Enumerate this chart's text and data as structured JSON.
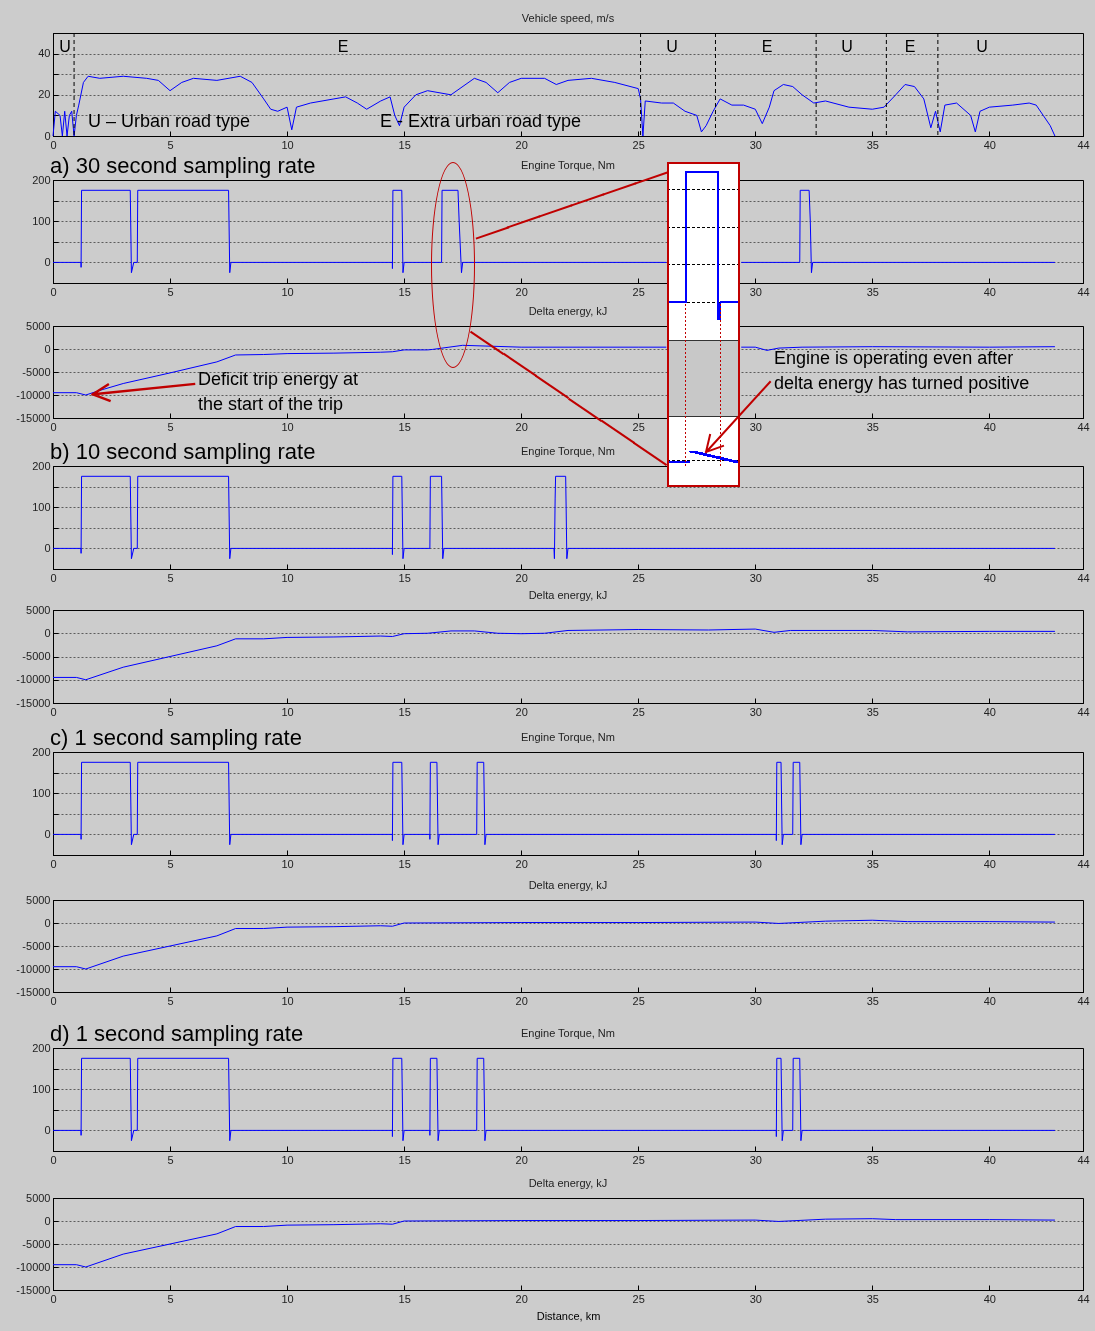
{
  "chart_data": [
    {
      "type": "line",
      "title": "Vehicle speed, m/s",
      "xlim": [
        0,
        44
      ],
      "xticks": [
        0,
        5,
        10,
        15,
        20,
        25,
        30,
        35,
        40,
        44
      ],
      "ylim": [
        0,
        50
      ],
      "yticks": [
        0,
        {
          "value": 10,
          "label": null
        },
        20,
        {
          "value": 30,
          "label": null
        },
        40,
        {
          "value": 50,
          "label": null
        }
      ],
      "grid": "y",
      "series": [
        {
          "color": "#0000ff",
          "x": [
            0,
            0.1,
            0.3,
            0.4,
            0.5,
            0.6,
            0.7,
            0.8,
            0.9,
            1.0,
            1.1,
            1.3,
            1.5,
            2,
            3,
            4,
            4.5,
            5,
            5.5,
            6,
            7,
            8,
            8.5,
            9,
            9.3,
            9.6,
            10,
            10.2,
            10.4,
            11,
            12,
            12.5,
            13,
            13.4,
            14,
            14.4,
            14.6,
            14.8,
            15,
            15.5,
            16,
            17,
            18,
            18.5,
            19,
            19.5,
            20,
            21,
            21.5,
            22,
            23,
            24,
            25,
            25.1,
            25.2,
            25.3,
            26,
            26.5,
            27,
            27.5,
            27.7,
            27.9,
            28.2,
            28.5,
            29,
            29.5,
            30,
            30.3,
            30.6,
            30.8,
            31.2,
            31.6,
            32,
            32.5,
            33,
            34,
            35,
            35.5,
            36,
            36.4,
            36.8,
            37.2,
            37.5,
            37.7,
            37.9,
            38.1,
            38.6,
            39.2,
            39.4,
            39.6,
            40,
            41,
            41.7,
            42,
            42.3,
            42.6,
            42.8
          ],
          "values": [
            0,
            12,
            10,
            0,
            12,
            0,
            10,
            12,
            0,
            10,
            15,
            26,
            29,
            28,
            29,
            28,
            27,
            22,
            26,
            28,
            27,
            29,
            26,
            18,
            13,
            12,
            14,
            3,
            14,
            16,
            18,
            19,
            16,
            13,
            17,
            19,
            10,
            5,
            14,
            20,
            22,
            20,
            28,
            26,
            21,
            26,
            28,
            28,
            25,
            27,
            28,
            26,
            23,
            18,
            0,
            17,
            16,
            16,
            12,
            10,
            2,
            5,
            12,
            18,
            15,
            15,
            13,
            6,
            14,
            22,
            25,
            24,
            20,
            16,
            17,
            14,
            13,
            14,
            20,
            25,
            24,
            18,
            4,
            12,
            2,
            15,
            16,
            10,
            2,
            12,
            14,
            15,
            16,
            15,
            10,
            5,
            0
          ]
        }
      ],
      "ref_lines": [
        {
          "axis": "x",
          "value": 0.9,
          "color": "#000000",
          "line_style": "dashed"
        },
        {
          "axis": "x",
          "value": 25.1,
          "color": "#000000",
          "line_style": "dashed"
        },
        {
          "axis": "x",
          "value": 28.3,
          "color": "#000000",
          "line_style": "dashed"
        },
        {
          "axis": "x",
          "value": 32.6,
          "color": "#000000",
          "line_style": "dashed"
        },
        {
          "axis": "x",
          "value": 35.6,
          "color": "#000000",
          "line_style": "dashed"
        },
        {
          "axis": "x",
          "value": 37.8,
          "color": "#000000",
          "line_style": "dashed"
        }
      ],
      "annotations": [
        "U",
        "E",
        "U",
        "E",
        "U",
        "E",
        "U",
        "U – Urban road type",
        "E - Extra urban road type"
      ]
    },
    {
      "type": "line",
      "title": "Engine Torque, Nm",
      "xlim": [
        0,
        44
      ],
      "xticks": [
        0,
        5,
        10,
        15,
        20,
        25,
        30,
        35,
        40,
        44
      ],
      "ylim": [
        -50,
        200
      ],
      "yticks": [
        {
          "value": -50,
          "label": null
        },
        0,
        {
          "value": 50,
          "label": null
        },
        100,
        {
          "value": 150,
          "label": null
        },
        200
      ],
      "grid": "y",
      "series": [
        {
          "color": "#0000ff",
          "x": [
            0,
            1.2,
            1.2,
            1.22,
            3.3,
            3.35,
            3.45,
            3.6,
            3.62,
            7.5,
            7.55,
            7.6,
            14.5,
            14.5,
            14.52,
            14.9,
            14.95,
            15.0,
            16.6,
            16.62,
            17.3,
            17.35,
            17.45,
            17.5,
            26.2,
            27.5,
            29.4,
            31.9,
            31.92,
            32.3,
            32.35,
            32.4,
            32.45,
            42.8
          ],
          "values": [
            0,
            0,
            -12,
            175,
            175,
            -25,
            0,
            0,
            175,
            175,
            -25,
            0,
            0,
            -15,
            175,
            175,
            -25,
            0,
            0,
            175,
            175,
            100,
            -25,
            0,
            0,
            null,
            0,
            0,
            175,
            175,
            100,
            -25,
            0,
            0
          ]
        }
      ],
      "annotations": [
        "a) 30 second sampling rate"
      ]
    },
    {
      "type": "line",
      "title": "Delta energy, kJ",
      "xlim": [
        0,
        44
      ],
      "xticks": [
        0,
        5,
        10,
        15,
        20,
        25,
        30,
        35,
        40,
        44
      ],
      "ylim": [
        -15000,
        5000
      ],
      "yticks": [
        -15000,
        -10000,
        -5000,
        0,
        5000
      ],
      "grid": "y",
      "series": [
        {
          "color": "#0000ff",
          "x": [
            0,
            1,
            1.4,
            2,
            3,
            5,
            7,
            7.8,
            9,
            10,
            12,
            14,
            14.5,
            15,
            16,
            16.2,
            17.5,
            20,
            25,
            26.2,
            27.5,
            29.4,
            30,
            30.5,
            31,
            32,
            35,
            40,
            42.8
          ],
          "values": [
            -9500,
            -9500,
            -10000,
            -9000,
            -7500,
            -5200,
            -2800,
            -1300,
            -1200,
            -1000,
            -900,
            -700,
            -600,
            -200,
            -200,
            -100,
            800,
            400,
            400,
            400,
            null,
            400,
            400,
            -300,
            200,
            400,
            500,
            400,
            500
          ]
        }
      ],
      "annotations": [
        {
          "text": "Deficit trip energy at\nthe start of the trip",
          "x": 1.4,
          "y": -10000
        },
        "Engine is operating even after\ndelta energy has turned positive"
      ]
    },
    {
      "type": "line",
      "title": "Engine Torque, Nm",
      "xlim": [
        0,
        44
      ],
      "xticks": [
        0,
        5,
        10,
        15,
        20,
        25,
        30,
        35,
        40,
        44
      ],
      "ylim": [
        -50,
        200
      ],
      "yticks": [
        {
          "value": -50,
          "label": null
        },
        0,
        {
          "value": 50,
          "label": null
        },
        100,
        {
          "value": 150,
          "label": null
        },
        200
      ],
      "grid": "y",
      "series": [
        {
          "color": "#0000ff",
          "x": [
            0,
            1.2,
            1.2,
            1.22,
            3.3,
            3.35,
            3.45,
            3.6,
            3.62,
            7.5,
            7.55,
            7.6,
            14.5,
            14.5,
            14.52,
            14.9,
            14.95,
            15.0,
            16.1,
            16.12,
            16.6,
            16.65,
            16.7,
            21.4,
            21.42,
            21.45,
            21.47,
            21.9,
            21.92,
            21.95,
            22.0,
            42.8
          ],
          "values": [
            0,
            0,
            -12,
            175,
            175,
            -25,
            0,
            0,
            175,
            175,
            -25,
            0,
            0,
            -15,
            175,
            175,
            -25,
            0,
            0,
            175,
            175,
            -25,
            0,
            0,
            -25,
            120,
            175,
            175,
            100,
            -25,
            0,
            0
          ]
        }
      ],
      "annotations": [
        "b) 10 second sampling rate"
      ]
    },
    {
      "type": "line",
      "title": "Delta energy, kJ",
      "xlim": [
        0,
        44
      ],
      "xticks": [
        0,
        5,
        10,
        15,
        20,
        25,
        30,
        35,
        40,
        44
      ],
      "ylim": [
        -15000,
        5000
      ],
      "yticks": [
        -15000,
        -10000,
        -5000,
        0,
        5000
      ],
      "grid": "y",
      "series": [
        {
          "color": "#0000ff",
          "x": [
            0,
            1,
            1.4,
            3,
            5,
            7,
            7.8,
            9,
            10,
            12,
            14,
            14.5,
            15,
            16,
            17,
            18,
            19,
            20,
            21,
            22,
            25,
            28,
            30,
            30.8,
            31.5,
            35,
            36.5,
            40,
            42.8
          ],
          "values": [
            -9500,
            -9500,
            -10000,
            -7300,
            -5000,
            -2700,
            -1200,
            -1200,
            -900,
            -800,
            -600,
            -700,
            -100,
            0,
            500,
            500,
            0,
            -100,
            0,
            600,
            800,
            700,
            900,
            200,
            600,
            600,
            300,
            400,
            400
          ]
        }
      ]
    },
    {
      "type": "line",
      "title": "Engine Torque, Nm",
      "xlim": [
        0,
        44
      ],
      "xticks": [
        0,
        5,
        10,
        15,
        20,
        25,
        30,
        35,
        40,
        44
      ],
      "ylim": [
        -50,
        200
      ],
      "yticks": [
        {
          "value": -50,
          "label": null
        },
        0,
        {
          "value": 50,
          "label": null
        },
        100,
        {
          "value": 150,
          "label": null
        },
        200
      ],
      "grid": "y",
      "series": [
        {
          "color": "#0000ff",
          "x": [
            0,
            1.2,
            1.2,
            1.22,
            3.3,
            3.35,
            3.45,
            3.6,
            3.62,
            7.5,
            7.55,
            7.6,
            14.5,
            14.5,
            14.52,
            14.9,
            14.95,
            15.0,
            16.1,
            16.1,
            16.12,
            16.4,
            16.45,
            16.5,
            18.1,
            18.12,
            18.4,
            18.45,
            18.5,
            30.9,
            30.9,
            30.92,
            31.1,
            31.15,
            31.2,
            31.6,
            31.62,
            31.9,
            31.95,
            32.0,
            42.8
          ],
          "values": [
            0,
            0,
            -12,
            175,
            175,
            -25,
            0,
            0,
            175,
            175,
            -25,
            0,
            0,
            -15,
            175,
            175,
            -25,
            0,
            0,
            -12,
            175,
            175,
            -25,
            0,
            0,
            175,
            175,
            -25,
            0,
            0,
            -15,
            175,
            175,
            -25,
            0,
            0,
            175,
            175,
            -25,
            0,
            0
          ]
        }
      ],
      "annotations": [
        "c) 1 second sampling rate"
      ]
    },
    {
      "type": "line",
      "title": "Delta energy, kJ",
      "xlim": [
        0,
        44
      ],
      "xticks": [
        0,
        5,
        10,
        15,
        20,
        25,
        30,
        35,
        40,
        44
      ],
      "ylim": [
        -15000,
        5000
      ],
      "yticks": [
        -15000,
        -10000,
        -5000,
        0,
        5000
      ],
      "grid": "y",
      "series": [
        {
          "color": "#0000ff",
          "x": [
            0,
            1,
            1.4,
            3,
            5,
            7,
            7.8,
            9,
            10,
            12,
            14,
            14.5,
            15,
            20,
            25,
            30,
            31,
            33,
            35,
            36.5,
            40,
            42.8
          ],
          "values": [
            -9500,
            -9500,
            -10000,
            -7200,
            -5000,
            -2800,
            -1200,
            -1200,
            -900,
            -800,
            -600,
            -700,
            0,
            100,
            100,
            200,
            -100,
            400,
            600,
            300,
            300,
            200
          ]
        }
      ]
    },
    {
      "type": "line",
      "title": "Engine Torque, Nm",
      "xlim": [
        0,
        44
      ],
      "xticks": [
        0,
        5,
        10,
        15,
        20,
        25,
        30,
        35,
        40,
        44
      ],
      "ylim": [
        -50,
        200
      ],
      "yticks": [
        {
          "value": -50,
          "label": null
        },
        0,
        {
          "value": 50,
          "label": null
        },
        100,
        {
          "value": 150,
          "label": null
        },
        200
      ],
      "grid": "y",
      "series": [
        {
          "color": "#0000ff",
          "x": [
            0,
            1.2,
            1.2,
            1.22,
            3.3,
            3.35,
            3.45,
            3.6,
            3.62,
            7.5,
            7.55,
            7.6,
            14.5,
            14.5,
            14.52,
            14.9,
            14.95,
            15.0,
            16.1,
            16.1,
            16.12,
            16.4,
            16.45,
            16.5,
            18.1,
            18.12,
            18.4,
            18.45,
            18.5,
            30.9,
            30.9,
            30.92,
            31.1,
            31.15,
            31.2,
            31.6,
            31.62,
            31.9,
            31.95,
            32.0,
            42.8
          ],
          "values": [
            0,
            0,
            -12,
            175,
            175,
            -25,
            0,
            0,
            175,
            175,
            -25,
            0,
            0,
            -15,
            175,
            175,
            -25,
            0,
            0,
            -12,
            175,
            175,
            -25,
            0,
            0,
            175,
            175,
            -25,
            0,
            0,
            -15,
            175,
            175,
            -25,
            0,
            0,
            175,
            175,
            -25,
            0,
            0
          ]
        }
      ],
      "annotations": [
        "d) 1 second sampling rate"
      ]
    },
    {
      "type": "line",
      "title": "Delta energy, kJ",
      "xlabel": "Distance, km",
      "xlim": [
        0,
        44
      ],
      "xticks": [
        0,
        5,
        10,
        15,
        20,
        25,
        30,
        35,
        40,
        44
      ],
      "ylim": [
        -15000,
        5000
      ],
      "yticks": [
        -15000,
        -10000,
        -5000,
        0,
        5000
      ],
      "grid": "y",
      "series": [
        {
          "color": "#0000ff",
          "x": [
            0,
            1,
            1.4,
            3,
            5,
            7,
            7.8,
            9,
            10,
            12,
            14,
            14.5,
            15,
            20,
            25,
            30,
            31,
            33,
            35,
            36,
            40,
            42.8
          ],
          "values": [
            -9500,
            -9500,
            -10000,
            -7200,
            -5000,
            -2800,
            -1200,
            -1200,
            -900,
            -800,
            -600,
            -700,
            0,
            100,
            100,
            200,
            -100,
            400,
            500,
            300,
            300,
            200
          ]
        }
      ]
    }
  ]
}
